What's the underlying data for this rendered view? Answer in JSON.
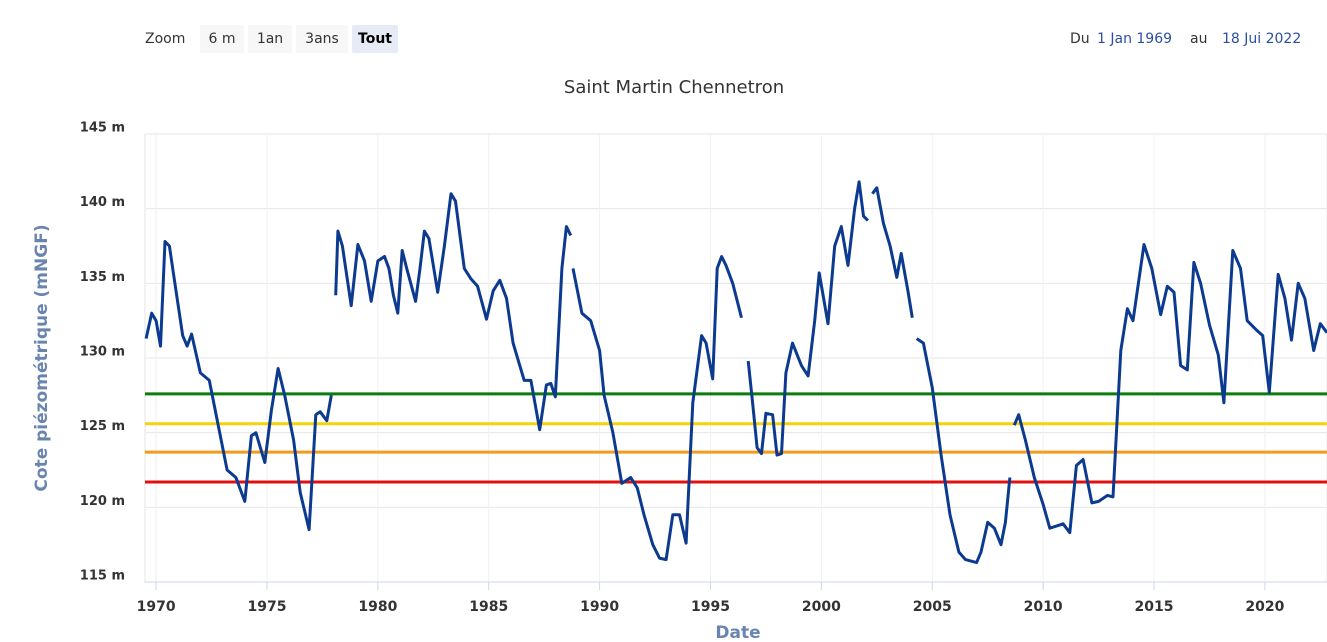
{
  "zoom": {
    "label": "Zoom",
    "buttons": [
      "6 m",
      "1an",
      "3ans",
      "Tout"
    ],
    "selected": 3
  },
  "range": {
    "from_label": "Du",
    "from": "1 Jan 1969",
    "to_label": "au",
    "to": "18 Jui 2022"
  },
  "chart_data": {
    "type": "line",
    "title": "Saint Martin Chennetron",
    "x_label": "Date",
    "y_label": "Cote piézométrique (mNGF)",
    "xlim": [
      1969.5,
      2022.8
    ],
    "ylim": [
      115,
      145
    ],
    "xticks": [
      1970,
      1975,
      1980,
      1985,
      1990,
      1995,
      2000,
      2005,
      2010,
      2015,
      2020
    ],
    "yticks": [
      {
        "value": 115,
        "label": "115 m"
      },
      {
        "value": 120,
        "label": "120 m"
      },
      {
        "value": 125,
        "label": "125 m"
      },
      {
        "value": 130,
        "label": "130 m"
      },
      {
        "value": 135,
        "label": "135 m"
      },
      {
        "value": 140,
        "label": "140 m"
      },
      {
        "value": 145,
        "label": "145 m"
      }
    ],
    "grid": true,
    "thresholds": [
      {
        "value": 127.6,
        "color": "#0a7d0a"
      },
      {
        "value": 125.6,
        "color": "#f5d20a"
      },
      {
        "value": 123.7,
        "color": "#f59a1e"
      },
      {
        "value": 121.7,
        "color": "#e01010"
      }
    ],
    "x": [
      1969.55,
      1969.8,
      1970.0,
      1970.2,
      1970.4,
      1970.6,
      1970.9,
      1971.2,
      1971.4,
      1971.6,
      1972.0,
      1972.4,
      1972.8,
      1973.2,
      1973.6,
      1974.0,
      1974.3,
      1974.5,
      1974.9,
      1975.2,
      1975.5,
      1975.8,
      1976.2,
      1976.5,
      1976.9,
      1977.2,
      1977.4,
      1977.7,
      1977.9,
      1978.0,
      1978.1,
      1978.2,
      1978.4,
      1978.8,
      1979.1,
      1979.4,
      1979.7,
      1980.0,
      1980.3,
      1980.5,
      1980.7,
      1980.9,
      1981.1,
      1981.3,
      1981.7,
      1981.9,
      1982.1,
      1982.3,
      1982.7,
      1983.0,
      1983.3,
      1983.5,
      1983.9,
      1984.2,
      1984.5,
      1984.9,
      1985.2,
      1985.5,
      1985.8,
      1986.1,
      1986.6,
      1986.9,
      1987.3,
      1987.6,
      1987.8,
      1988.0,
      1988.3,
      1988.5,
      1988.7,
      1988.75,
      1988.8,
      1989.2,
      1989.6,
      1990.0,
      1990.2,
      1990.6,
      1991.0,
      1991.4,
      1991.7,
      1992.0,
      1992.4,
      1992.7,
      1993.0,
      1993.3,
      1993.6,
      1993.9,
      1994.2,
      1994.6,
      1994.8,
      1995.1,
      1995.3,
      1995.5,
      1995.7,
      1996.0,
      1996.4,
      1996.5,
      1996.7,
      1996.9,
      1997.1,
      1997.3,
      1997.5,
      1997.8,
      1998.0,
      1998.2,
      1998.4,
      1998.7,
      1999.1,
      1999.4,
      1999.7,
      1999.9,
      2000.1,
      2000.3,
      2000.6,
      2000.9,
      2001.2,
      2001.5,
      2001.7,
      2001.9,
      2002.1,
      2002.2,
      2002.3,
      2002.5,
      2002.8,
      2003.1,
      2003.4,
      2003.6,
      2003.9,
      2004.1,
      2004.2,
      2004.3,
      2004.6,
      2005.0,
      2005.4,
      2005.8,
      2006.2,
      2006.5,
      2007.0,
      2007.2,
      2007.5,
      2007.8,
      2008.1,
      2008.3,
      2008.5,
      2008.55,
      2008.7,
      2008.9,
      2009.2,
      2009.6,
      2010.0,
      2010.3,
      2010.7,
      2010.9,
      2011.2,
      2011.5,
      2011.8,
      2012.2,
      2012.5,
      2012.9,
      2013.15,
      2013.5,
      2013.8,
      2014.05,
      2014.55,
      2014.9,
      2015.3,
      2015.6,
      2015.9,
      2016.2,
      2016.5,
      2016.8,
      2017.1,
      2017.5,
      2017.9,
      2018.15,
      2018.55,
      2018.9,
      2019.2,
      2019.6,
      2019.9,
      2020.2,
      2020.6,
      2020.9,
      2021.2,
      2021.5,
      2021.8,
      2022.2,
      2022.5,
      2022.8
    ],
    "series": [
      {
        "color": "#0b3a8f",
        "values": [
          131.3,
          133.0,
          132.5,
          130.8,
          137.8,
          137.5,
          134.5,
          131.5,
          130.8,
          131.6,
          129.0,
          128.5,
          125.5,
          122.5,
          122.0,
          120.4,
          124.8,
          125.0,
          123.0,
          126.5,
          129.3,
          127.5,
          124.5,
          121.0,
          118.5,
          126.2,
          126.4,
          125.8,
          127.5,
          null,
          134.2,
          138.5,
          137.5,
          133.5,
          137.6,
          136.5,
          133.8,
          136.5,
          136.8,
          136.0,
          134.2,
          133.0,
          137.2,
          136.0,
          133.8,
          136.0,
          138.5,
          138.0,
          134.4,
          137.5,
          141.0,
          140.5,
          136.0,
          135.3,
          134.8,
          132.6,
          134.5,
          135.2,
          134.0,
          131.0,
          128.5,
          128.5,
          125.2,
          128.2,
          128.3,
          127.4,
          136.0,
          138.8,
          138.2,
          null,
          136.0,
          133.0,
          132.5,
          130.5,
          127.5,
          125.0,
          121.6,
          122.0,
          121.3,
          119.5,
          117.5,
          116.6,
          116.5,
          119.5,
          119.5,
          117.6,
          127.0,
          131.5,
          131.0,
          128.6,
          136.0,
          136.8,
          136.2,
          135.0,
          132.7,
          null,
          129.8,
          127.0,
          124.0,
          123.6,
          126.3,
          126.2,
          123.5,
          123.6,
          129.0,
          131.0,
          129.5,
          128.8,
          132.5,
          135.7,
          134.0,
          132.3,
          137.5,
          138.8,
          136.2,
          140.0,
          141.8,
          139.5,
          139.2,
          null,
          141.0,
          141.4,
          139.0,
          137.5,
          135.4,
          137.0,
          134.5,
          132.7,
          null,
          131.3,
          131.0,
          128.0,
          123.5,
          119.5,
          117.0,
          116.5,
          116.3,
          117.0,
          119.0,
          118.6,
          117.5,
          119.0,
          122.0,
          null,
          125.5,
          126.2,
          124.5,
          122.0,
          120.2,
          118.6,
          118.8,
          118.9,
          118.3,
          122.8,
          123.2,
          120.3,
          120.4,
          120.8,
          120.7,
          130.5,
          133.3,
          132.5,
          137.6,
          136.0,
          132.9,
          134.8,
          134.4,
          129.5,
          129.2,
          136.4,
          135.0,
          132.2,
          130.2,
          127.0,
          137.2,
          136.0,
          132.5,
          131.9,
          131.5,
          127.7,
          135.6,
          134.0,
          131.2,
          135.0,
          134.0,
          130.5,
          132.3,
          131.7
        ]
      }
    ]
  }
}
